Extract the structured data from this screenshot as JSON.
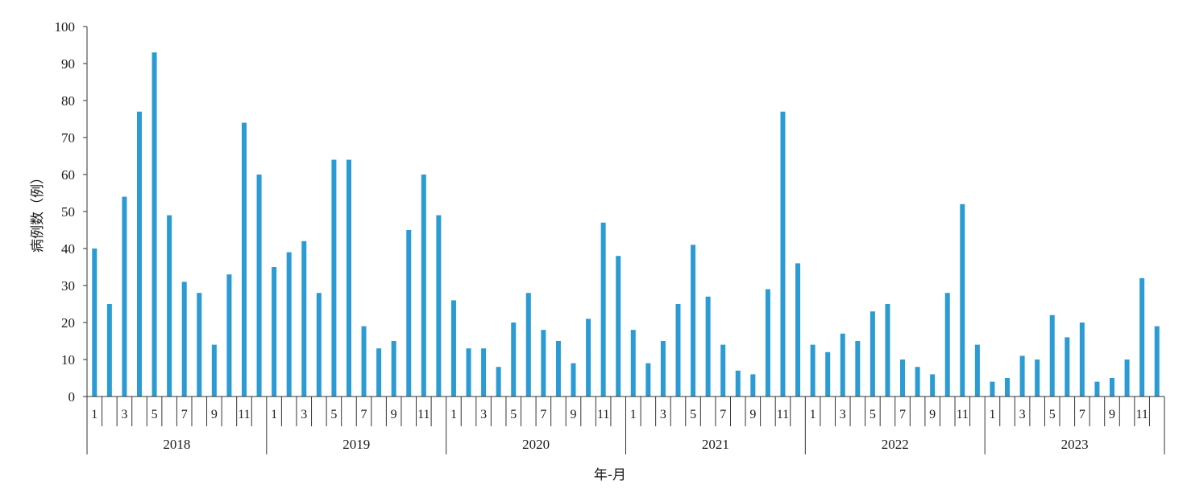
{
  "chart_data": {
    "type": "bar",
    "title": "",
    "xlabel": "年-月",
    "ylabel": "病例数（例）",
    "ylim": [
      0,
      100
    ],
    "yticks": [
      "0",
      "10",
      "20",
      "30",
      "40",
      "50",
      "60",
      "70",
      "80",
      "90",
      "100"
    ],
    "bar_color": "#2b9bd3",
    "grid": false,
    "legend": "none",
    "years": [
      "2018",
      "2019",
      "2020",
      "2021",
      "2022",
      "2023"
    ],
    "month_tick_labels": [
      "1",
      "3",
      "5",
      "7",
      "9",
      "11"
    ],
    "categories": [
      "2018-1",
      "2018-2",
      "2018-3",
      "2018-4",
      "2018-5",
      "2018-6",
      "2018-7",
      "2018-8",
      "2018-9",
      "2018-10",
      "2018-11",
      "2018-12",
      "2019-1",
      "2019-2",
      "2019-3",
      "2019-4",
      "2019-5",
      "2019-6",
      "2019-7",
      "2019-8",
      "2019-9",
      "2019-10",
      "2019-11",
      "2019-12",
      "2020-1",
      "2020-2",
      "2020-3",
      "2020-4",
      "2020-5",
      "2020-6",
      "2020-7",
      "2020-8",
      "2020-9",
      "2020-10",
      "2020-11",
      "2020-12",
      "2021-1",
      "2021-2",
      "2021-3",
      "2021-4",
      "2021-5",
      "2021-6",
      "2021-7",
      "2021-8",
      "2021-9",
      "2021-10",
      "2021-11",
      "2021-12",
      "2022-1",
      "2022-2",
      "2022-3",
      "2022-4",
      "2022-5",
      "2022-6",
      "2022-7",
      "2022-8",
      "2022-9",
      "2022-10",
      "2022-11",
      "2022-12",
      "2023-1",
      "2023-2",
      "2023-3",
      "2023-4",
      "2023-5",
      "2023-6",
      "2023-7",
      "2023-8",
      "2023-9",
      "2023-10",
      "2023-11",
      "2023-12"
    ],
    "values": [
      40,
      25,
      54,
      77,
      93,
      49,
      31,
      28,
      14,
      33,
      74,
      60,
      35,
      39,
      42,
      28,
      64,
      64,
      19,
      13,
      15,
      45,
      60,
      49,
      26,
      13,
      13,
      8,
      20,
      28,
      18,
      15,
      9,
      21,
      47,
      38,
      18,
      9,
      15,
      25,
      41,
      27,
      14,
      7,
      6,
      29,
      77,
      36,
      14,
      12,
      17,
      15,
      23,
      25,
      10,
      8,
      6,
      28,
      52,
      14,
      4,
      5,
      11,
      10,
      22,
      16,
      20,
      4,
      5,
      10,
      32,
      19
    ]
  }
}
